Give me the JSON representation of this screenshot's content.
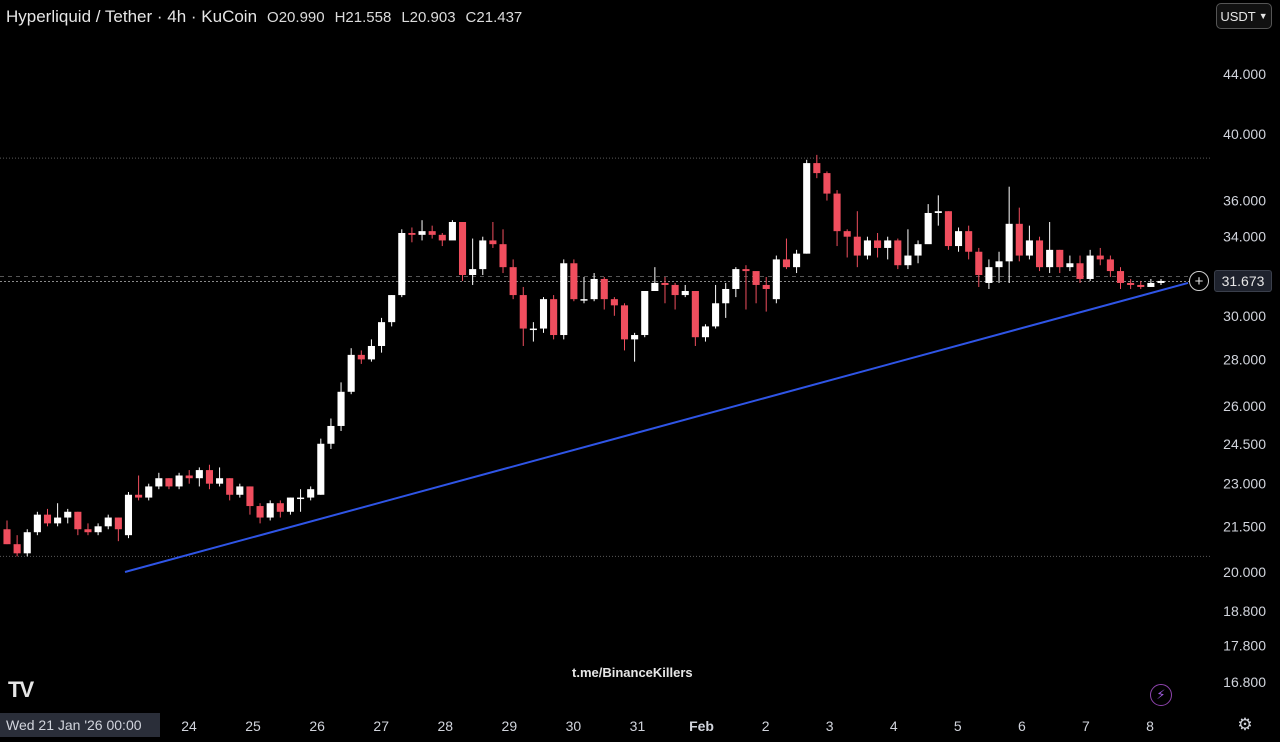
{
  "header": {
    "title": "Hyperliquid / Tether · 4h · KuCoin",
    "open": "O20.990",
    "high": "H21.558",
    "low": "L20.903",
    "close": "C21.437"
  },
  "currency": "USDT",
  "watermark": "t.me/BinanceKillers",
  "logo_text": "TV",
  "date_badge": "Wed 21 Jan '26   00:00",
  "current_price": "31.673",
  "colors": {
    "up": "#ffffff",
    "down": "#f04e5e",
    "trendline": "#2f55e6",
    "grid": "#5a5a5a"
  },
  "chart_data": {
    "type": "candlestick",
    "y_ticks": [
      "44.000",
      "40.000",
      "36.000",
      "34.000",
      "31.673",
      "30.000",
      "28.000",
      "26.000",
      "24.500",
      "23.000",
      "21.500",
      "20.000",
      "18.800",
      "17.800",
      "16.800"
    ],
    "x_ticks": [
      "24",
      "25",
      "26",
      "27",
      "28",
      "29",
      "30",
      "31",
      "Feb",
      "2",
      "3",
      "4",
      "5",
      "6",
      "7",
      "8"
    ],
    "horizontal_levels": [
      38.5,
      20.5
    ],
    "trendline": {
      "from": [
        0,
        20.0
      ],
      "to": [
        1,
        31.6
      ]
    },
    "candles": [
      [
        21.4,
        20.9,
        21.7,
        20.9
      ],
      [
        20.9,
        20.6,
        21.2,
        20.5
      ],
      [
        20.6,
        21.3,
        21.4,
        20.5
      ],
      [
        21.3,
        21.9,
        22.0,
        21.2
      ],
      [
        21.9,
        21.6,
        22.1,
        21.5
      ],
      [
        21.6,
        21.8,
        22.3,
        21.5
      ],
      [
        21.8,
        22.0,
        22.1,
        21.6
      ],
      [
        22.0,
        21.4,
        22.0,
        21.2
      ],
      [
        21.4,
        21.3,
        21.6,
        21.2
      ],
      [
        21.3,
        21.5,
        21.6,
        21.2
      ],
      [
        21.5,
        21.8,
        21.9,
        21.4
      ],
      [
        21.8,
        21.4,
        21.8,
        21.0
      ],
      [
        21.2,
        22.6,
        22.7,
        21.1
      ],
      [
        22.6,
        22.5,
        23.3,
        22.4
      ],
      [
        22.5,
        22.9,
        23.0,
        22.4
      ],
      [
        22.9,
        23.2,
        23.4,
        22.8
      ],
      [
        23.2,
        22.9,
        23.2,
        22.8
      ],
      [
        22.9,
        23.3,
        23.4,
        22.8
      ],
      [
        23.3,
        23.2,
        23.5,
        23.0
      ],
      [
        23.2,
        23.5,
        23.6,
        22.9
      ],
      [
        23.5,
        23.0,
        23.7,
        22.8
      ],
      [
        23.0,
        23.2,
        23.6,
        22.9
      ],
      [
        23.2,
        22.6,
        23.2,
        22.4
      ],
      [
        22.6,
        22.9,
        23.0,
        22.5
      ],
      [
        22.9,
        22.2,
        22.9,
        21.9
      ],
      [
        22.2,
        21.8,
        22.3,
        21.6
      ],
      [
        21.8,
        22.3,
        22.4,
        21.7
      ],
      [
        22.3,
        22.0,
        22.4,
        21.8
      ],
      [
        22.0,
        22.5,
        22.5,
        21.9
      ],
      [
        22.5,
        22.5,
        22.8,
        22.0
      ],
      [
        22.5,
        22.8,
        22.9,
        22.4
      ],
      [
        22.6,
        24.5,
        24.7,
        22.6
      ],
      [
        24.5,
        25.2,
        25.5,
        24.3
      ],
      [
        25.2,
        26.6,
        27.0,
        25.0
      ],
      [
        26.6,
        28.2,
        28.5,
        26.5
      ],
      [
        28.2,
        28.0,
        28.4,
        27.8
      ],
      [
        28.0,
        28.6,
        28.9,
        27.9
      ],
      [
        28.6,
        29.7,
        29.9,
        28.3
      ],
      [
        29.7,
        31.0,
        31.0,
        29.5
      ],
      [
        31.0,
        34.2,
        34.4,
        30.9
      ],
      [
        34.2,
        34.1,
        34.5,
        33.7
      ],
      [
        34.1,
        34.3,
        34.9,
        33.8
      ],
      [
        34.3,
        34.1,
        34.6,
        33.9
      ],
      [
        34.1,
        33.8,
        34.2,
        33.5
      ],
      [
        33.8,
        34.8,
        34.9,
        33.9
      ],
      [
        34.8,
        32.0,
        34.8,
        31.7
      ],
      [
        32.0,
        32.3,
        33.9,
        31.5
      ],
      [
        32.3,
        33.8,
        34.0,
        32.0
      ],
      [
        33.8,
        33.6,
        34.8,
        33.4
      ],
      [
        33.6,
        32.4,
        34.4,
        32.1
      ],
      [
        32.4,
        31.0,
        32.8,
        30.8
      ],
      [
        31.0,
        29.4,
        31.4,
        28.6
      ],
      [
        29.4,
        29.4,
        29.7,
        28.8
      ],
      [
        29.4,
        30.8,
        30.9,
        29.2
      ],
      [
        30.8,
        29.1,
        31.0,
        28.9
      ],
      [
        29.1,
        32.6,
        32.8,
        28.9
      ],
      [
        32.6,
        30.8,
        32.8,
        30.7
      ],
      [
        30.8,
        30.8,
        31.9,
        30.6
      ],
      [
        30.8,
        31.8,
        32.1,
        30.7
      ],
      [
        31.8,
        30.8,
        31.9,
        30.3
      ],
      [
        30.8,
        30.5,
        30.9,
        30.0
      ],
      [
        30.5,
        28.9,
        30.6,
        28.4
      ],
      [
        28.9,
        29.1,
        29.2,
        27.9
      ],
      [
        29.1,
        31.2,
        31.2,
        29.0
      ],
      [
        31.2,
        31.6,
        32.4,
        31.2
      ],
      [
        31.6,
        31.5,
        31.9,
        30.6
      ],
      [
        31.5,
        31.0,
        31.6,
        30.3
      ],
      [
        31.0,
        31.2,
        31.5,
        30.9
      ],
      [
        31.2,
        29.0,
        31.2,
        28.6
      ],
      [
        29.0,
        29.5,
        29.6,
        28.8
      ],
      [
        29.5,
        30.6,
        31.5,
        29.4
      ],
      [
        30.6,
        31.3,
        31.6,
        29.9
      ],
      [
        31.3,
        32.3,
        32.4,
        30.9
      ],
      [
        32.3,
        32.2,
        32.5,
        30.3
      ],
      [
        32.2,
        31.5,
        31.8,
        30.6
      ],
      [
        31.5,
        31.3,
        31.9,
        30.2
      ],
      [
        30.8,
        32.8,
        33.0,
        30.6
      ],
      [
        32.8,
        32.4,
        33.9,
        32.3
      ],
      [
        32.4,
        33.1,
        33.3,
        32.1
      ],
      [
        33.1,
        38.2,
        38.4,
        33.1
      ],
      [
        38.2,
        37.6,
        38.7,
        37.3
      ],
      [
        37.6,
        36.4,
        37.7,
        36.0
      ],
      [
        36.4,
        34.3,
        36.6,
        33.5
      ],
      [
        34.3,
        34.0,
        34.4,
        32.9
      ],
      [
        34.0,
        33.0,
        35.4,
        32.4
      ],
      [
        33.0,
        33.8,
        34.0,
        32.8
      ],
      [
        33.8,
        33.4,
        34.2,
        32.9
      ],
      [
        33.4,
        33.8,
        34.0,
        32.8
      ],
      [
        33.8,
        32.5,
        33.9,
        32.3
      ],
      [
        32.5,
        33.0,
        34.4,
        32.3
      ],
      [
        33.0,
        33.6,
        33.8,
        32.6
      ],
      [
        33.6,
        35.3,
        35.8,
        34.0
      ],
      [
        35.3,
        35.4,
        36.3,
        34.6
      ],
      [
        35.4,
        33.5,
        35.4,
        33.3
      ],
      [
        33.5,
        34.3,
        34.5,
        33.2
      ],
      [
        34.3,
        33.2,
        34.6,
        32.8
      ],
      [
        33.2,
        32.0,
        33.4,
        31.4
      ],
      [
        31.6,
        32.4,
        32.8,
        31.3
      ],
      [
        32.4,
        32.7,
        33.2,
        31.6
      ],
      [
        32.7,
        34.7,
        36.8,
        31.6
      ],
      [
        34.7,
        33.0,
        35.6,
        32.7
      ],
      [
        33.0,
        33.8,
        34.6,
        32.8
      ],
      [
        33.8,
        32.4,
        34.0,
        32.2
      ],
      [
        32.4,
        33.3,
        34.8,
        32.1
      ],
      [
        33.3,
        32.4,
        33.3,
        32.1
      ],
      [
        32.4,
        32.6,
        33.0,
        32.2
      ],
      [
        32.6,
        31.8,
        33.0,
        31.6
      ],
      [
        31.8,
        33.0,
        33.3,
        31.7
      ],
      [
        33.0,
        32.8,
        33.4,
        32.5
      ],
      [
        32.8,
        32.2,
        33.0,
        31.9
      ],
      [
        32.2,
        31.6,
        32.4,
        31.3
      ],
      [
        31.6,
        31.5,
        31.8,
        31.3
      ],
      [
        31.5,
        31.4,
        31.7,
        31.3
      ],
      [
        31.4,
        31.6,
        31.8,
        31.4
      ],
      [
        31.6,
        31.7,
        31.8,
        31.5
      ]
    ]
  }
}
